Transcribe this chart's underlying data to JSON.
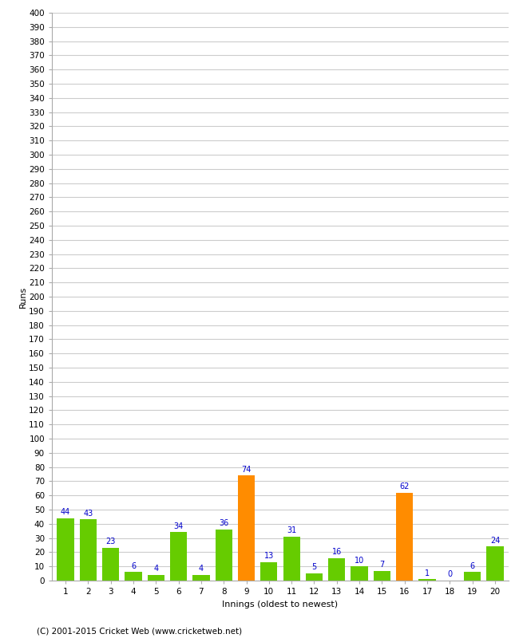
{
  "xlabel": "Innings (oldest to newest)",
  "ylabel": "Runs",
  "categories": [
    1,
    2,
    3,
    4,
    5,
    6,
    7,
    8,
    9,
    10,
    11,
    12,
    13,
    14,
    15,
    16,
    17,
    18,
    19,
    20
  ],
  "values": [
    44,
    43,
    23,
    6,
    4,
    34,
    4,
    36,
    74,
    13,
    31,
    5,
    16,
    10,
    7,
    62,
    1,
    0,
    6,
    24
  ],
  "bar_colors": [
    "#66cc00",
    "#66cc00",
    "#66cc00",
    "#66cc00",
    "#66cc00",
    "#66cc00",
    "#66cc00",
    "#66cc00",
    "#ff8c00",
    "#66cc00",
    "#66cc00",
    "#66cc00",
    "#66cc00",
    "#66cc00",
    "#66cc00",
    "#ff8c00",
    "#66cc00",
    "#66cc00",
    "#66cc00",
    "#66cc00"
  ],
  "ylim": [
    0,
    400
  ],
  "ytick_step": 10,
  "label_color": "#0000cc",
  "label_fontsize": 7,
  "axis_fontsize": 7.5,
  "ylabel_fontsize": 8,
  "xlabel_fontsize": 8,
  "background_color": "#ffffff",
  "grid_color": "#cccccc",
  "footer": "(C) 2001-2015 Cricket Web (www.cricketweb.net)"
}
